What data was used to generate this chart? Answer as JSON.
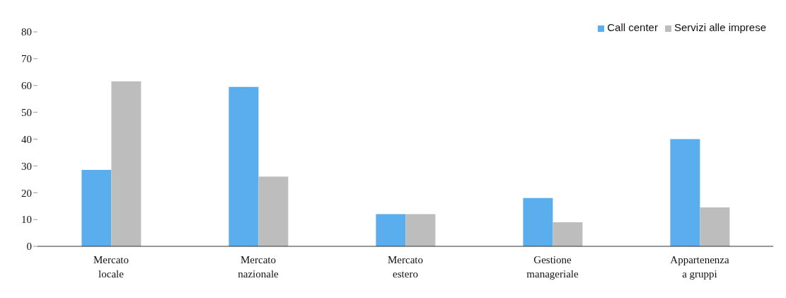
{
  "chart_data": {
    "type": "bar",
    "categories": [
      "Mercato locale",
      "Mercato nazionale",
      "Mercato estero",
      "Gestione manageriale",
      "Appartenenza a gruppi"
    ],
    "series": [
      {
        "name": "Call center",
        "color": "#5aaeee",
        "values": [
          28.5,
          59.5,
          12,
          18,
          40
        ]
      },
      {
        "name": "Servizi alle imprese",
        "color": "#bdbdbd",
        "values": [
          61.5,
          26,
          12,
          9,
          14.5
        ]
      }
    ],
    "ylim": [
      0,
      80
    ],
    "yticks": [
      0,
      10,
      20,
      30,
      40,
      50,
      60,
      70,
      80
    ],
    "grid": false,
    "legend": "top right"
  }
}
